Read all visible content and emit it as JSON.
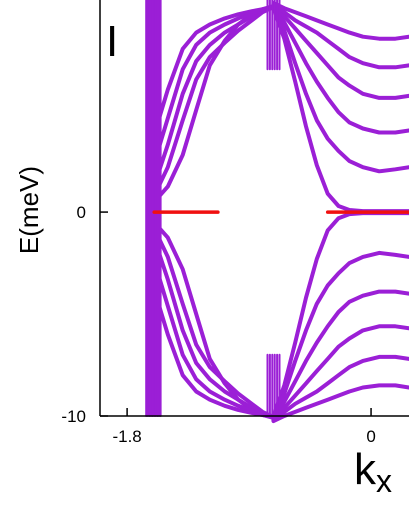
{
  "chart_data": {
    "type": "line",
    "panel_label": "I",
    "ylabel": "E(meV)",
    "xlabel_base": "k",
    "xlabel_sub": "x",
    "x_ticks": [
      {
        "value": -1.8,
        "label": "-1.8"
      },
      {
        "value": 0,
        "label": "0"
      }
    ],
    "y_ticks": [
      {
        "value": 0,
        "label": "0"
      },
      {
        "value": -10,
        "label": "-10"
      }
    ],
    "xlim": [
      -2.0,
      0.28
    ],
    "ylim": [
      -10,
      10.4
    ],
    "edge_x": -1.6,
    "cross_x": -0.72,
    "band_color": "#9b1fd6",
    "edge_state_color": "#f01010",
    "edge_state_segments": [
      {
        "x": [
          -1.6,
          -1.13
        ],
        "y": [
          0,
          0
        ]
      },
      {
        "x": [
          -0.32,
          0.28
        ],
        "y": [
          0,
          0
        ]
      }
    ],
    "bands": [
      {
        "x": [
          -1.6,
          -1.5,
          -1.39,
          -1.29,
          -1.19,
          -1.08,
          -0.98,
          -0.88,
          -0.8,
          -0.72
        ],
        "y": [
          0.5,
          1.25,
          2.8,
          5.0,
          7.2,
          8.4,
          9.2,
          9.7,
          9.95,
          10.1
        ]
      },
      {
        "x": [
          -1.6,
          -1.5,
          -1.39,
          -1.29,
          -1.19,
          -1.08,
          -0.98,
          -0.88,
          -0.8,
          -0.72
        ],
        "y": [
          0.8,
          2.2,
          4.5,
          6.5,
          7.6,
          8.3,
          8.9,
          9.4,
          9.8,
          10.05
        ]
      },
      {
        "x": [
          -1.6,
          -1.5,
          -1.39,
          -1.29,
          -1.19,
          -1.08,
          -0.98,
          -0.88,
          -0.8,
          -0.72
        ],
        "y": [
          1.3,
          3.3,
          5.8,
          7.4,
          8.2,
          8.8,
          9.2,
          9.6,
          9.85,
          10.05
        ]
      },
      {
        "x": [
          -1.6,
          -1.5,
          -1.39,
          -1.29,
          -1.19,
          -1.08,
          -0.98,
          -0.88,
          -0.8,
          -0.72
        ],
        "y": [
          2.4,
          4.6,
          7.0,
          8.2,
          8.8,
          9.2,
          9.5,
          9.75,
          9.9,
          10.05
        ]
      },
      {
        "x": [
          -1.6,
          -1.5,
          -1.39,
          -1.29,
          -1.19,
          -1.08,
          -0.98,
          -0.88,
          -0.8,
          -0.72
        ],
        "y": [
          3.8,
          6.0,
          8.0,
          8.8,
          9.2,
          9.5,
          9.7,
          9.85,
          9.95,
          10.05
        ]
      },
      {
        "x": [
          -0.72,
          -0.64,
          -0.56,
          -0.48,
          -0.4,
          -0.32,
          -0.24,
          -0.16,
          -0.06,
          0.06,
          0.18,
          0.28
        ],
        "y": [
          10.0,
          8.5,
          6.4,
          4.2,
          2.3,
          0.9,
          0.3,
          0.1,
          0.05,
          0.05,
          0.05,
          0.05
        ]
      },
      {
        "x": [
          -0.72,
          -0.64,
          -0.56,
          -0.48,
          -0.4,
          -0.32,
          -0.24,
          -0.16,
          -0.06,
          0.06,
          0.18,
          0.28
        ],
        "y": [
          10.1,
          8.9,
          7.3,
          5.8,
          4.5,
          3.6,
          3.0,
          2.5,
          2.2,
          2.0,
          2.1,
          2.2
        ]
      },
      {
        "x": [
          -0.72,
          -0.64,
          -0.56,
          -0.48,
          -0.4,
          -0.32,
          -0.24,
          -0.16,
          -0.06,
          0.06,
          0.18,
          0.28
        ],
        "y": [
          10.15,
          9.3,
          8.3,
          7.3,
          6.4,
          5.6,
          4.9,
          4.4,
          4.1,
          3.9,
          3.9,
          4.0
        ]
      },
      {
        "x": [
          -0.72,
          -0.64,
          -0.56,
          -0.48,
          -0.4,
          -0.32,
          -0.24,
          -0.16,
          -0.06,
          0.06,
          0.18,
          0.28
        ],
        "y": [
          10.2,
          9.6,
          9.0,
          8.4,
          7.8,
          7.2,
          6.6,
          6.2,
          5.8,
          5.6,
          5.6,
          5.7
        ]
      },
      {
        "x": [
          -0.72,
          -0.64,
          -0.56,
          -0.48,
          -0.4,
          -0.32,
          -0.24,
          -0.16,
          -0.06,
          0.06,
          0.18,
          0.28
        ],
        "y": [
          10.2,
          9.8,
          9.4,
          9.1,
          8.8,
          8.4,
          8.0,
          7.6,
          7.3,
          7.1,
          7.1,
          7.2
        ]
      },
      {
        "x": [
          -0.72,
          -0.64,
          -0.56,
          -0.48,
          -0.4,
          -0.32,
          -0.24,
          -0.16,
          -0.06,
          0.06,
          0.18,
          0.28
        ],
        "y": [
          10.25,
          10.0,
          9.8,
          9.6,
          9.4,
          9.2,
          9.0,
          8.8,
          8.6,
          8.5,
          8.5,
          8.6
        ]
      }
    ]
  }
}
